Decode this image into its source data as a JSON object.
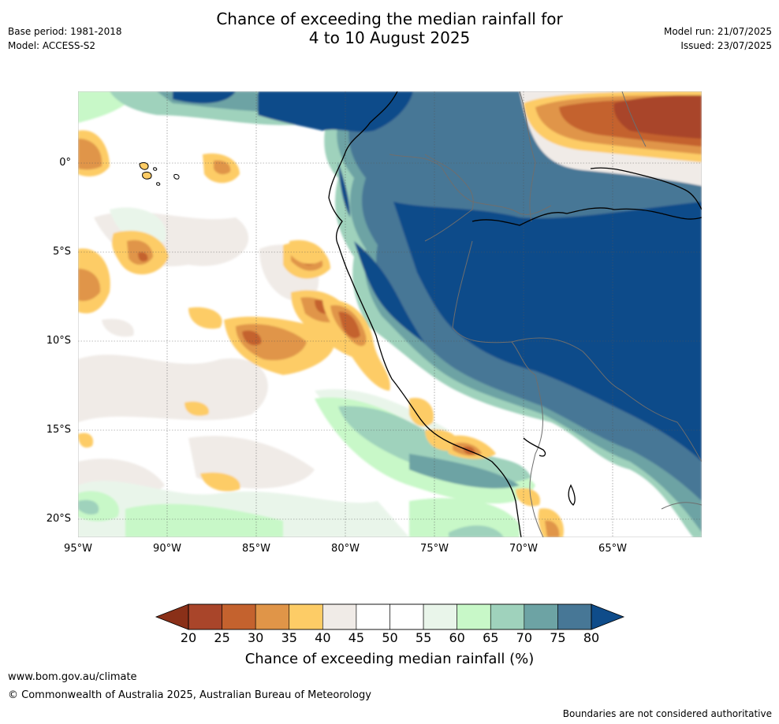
{
  "header": {
    "title_line1": "Chance of exceeding the median rainfall for",
    "title_line2": "4 to 10 August 2025",
    "base_period": "Base period: 1981-2018",
    "model": "Model: ACCESS-S2",
    "model_run": "Model run: 21/07/2025",
    "issued": "Issued: 23/07/2025"
  },
  "map": {
    "lat_labels": [
      "0°",
      "5°S",
      "10°S",
      "15°S",
      "20°S"
    ],
    "lon_labels": [
      "95°W",
      "90°W",
      "85°W",
      "80°W",
      "75°W",
      "70°W",
      "65°W"
    ],
    "colors": {
      "ocean_dark": "#0f4c8a",
      "strong_wet": "#477796",
      "wet": "#6da3a4",
      "mild_wet": "#9fd2bc",
      "light_wet": "#c8f8c8",
      "very_light_wet": "#e9f5ea",
      "neutral": "#ffffff",
      "light_dry": "#f0ebe7",
      "dry_yellow": "#fdcc66",
      "dry_orange": "#e09548",
      "dry_red": "#c4622e",
      "very_dry": "#a9452a"
    }
  },
  "colorbar": {
    "ticks": [
      "20",
      "25",
      "30",
      "35",
      "40",
      "45",
      "50",
      "55",
      "60",
      "65",
      "70",
      "75",
      "80"
    ],
    "colors": [
      "#a9452a",
      "#c4622e",
      "#e09548",
      "#fdcc66",
      "#f0ebe7",
      "#ffffff",
      "#ffffff",
      "#e9f5ea",
      "#c8f8c8",
      "#9fd2bc",
      "#6da3a4",
      "#477796"
    ],
    "under_color": "#8a3018",
    "over_color": "#0f4c8a",
    "label": "Chance of exceeding median rainfall (%)"
  },
  "footer": {
    "url": "www.bom.gov.au/climate",
    "copyright": "© Commonwealth of Australia 2025, Australian Bureau of Meteorology",
    "disclaimer": "Boundaries are not considered authoritative"
  }
}
